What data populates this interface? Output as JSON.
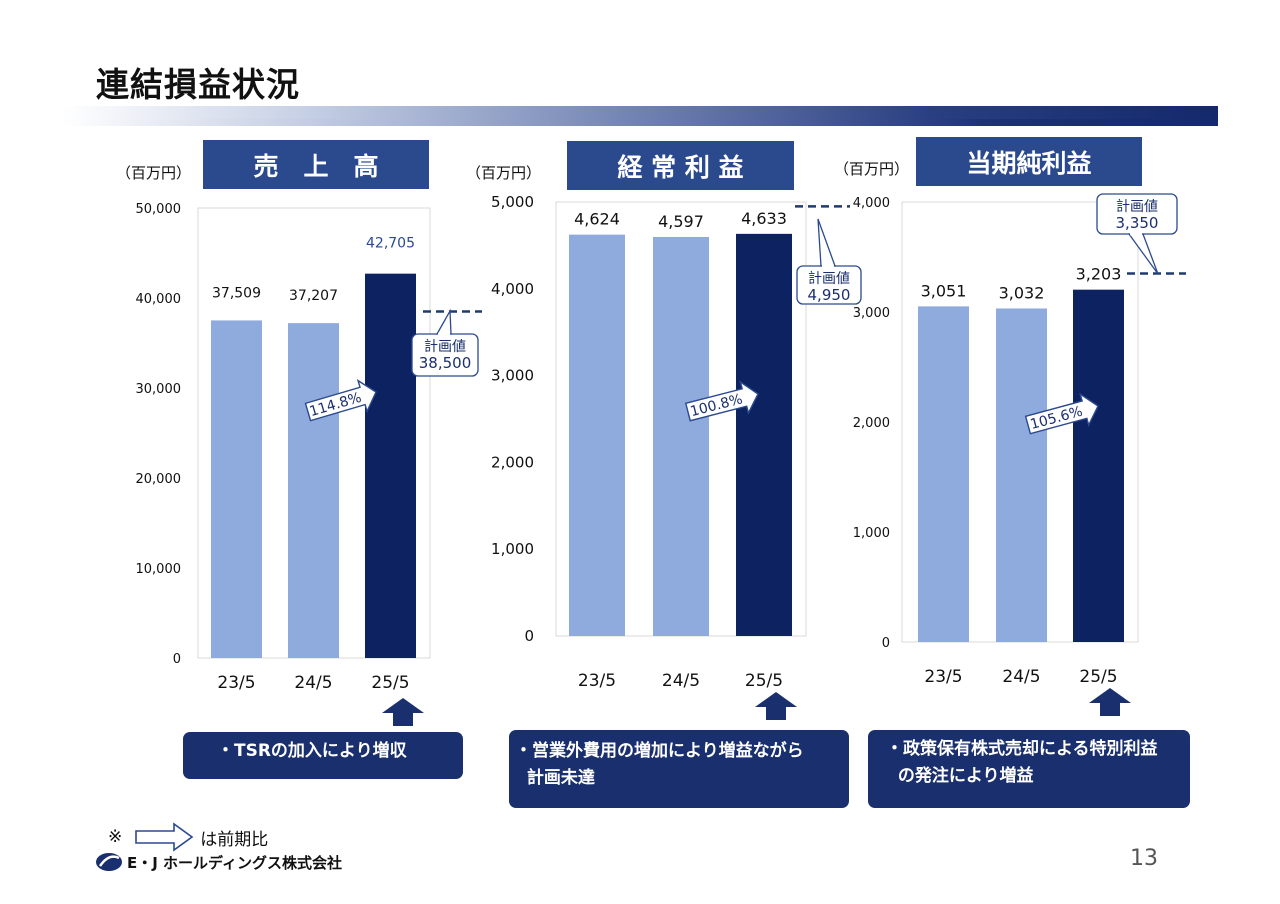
{
  "page_title": "連結損益状況",
  "page_number": "13",
  "company": "E・J ホールディングス株式会社",
  "footnote": {
    "prefix": "※",
    "suffix": "は前期比"
  },
  "colors": {
    "prior": "#8faadc",
    "current": "#0d2260",
    "label_current": "#2b4a8e",
    "note_bg": "#1a2f6e"
  },
  "chart_data": [
    {
      "type": "bar",
      "title": "売　上　高",
      "unit": "（百万円）",
      "categories": [
        "23/5",
        "24/5",
        "25/5"
      ],
      "values": [
        37509,
        37207,
        42705
      ],
      "value_labels": [
        "37,509",
        "37,207",
        "42,705"
      ],
      "ylim": [
        0,
        50000
      ],
      "yticks": [
        "0",
        "10,000",
        "20,000",
        "30,000",
        "40,000",
        "50,000"
      ],
      "plan_label": "計画値",
      "plan_value": 38500,
      "plan_value_label": "38,500",
      "growth": "114.8%",
      "note": [
        "・TSRの加入により増収"
      ]
    },
    {
      "type": "bar",
      "title": "経 常 利 益",
      "unit": "（百万円）",
      "categories": [
        "23/5",
        "24/5",
        "25/5"
      ],
      "values": [
        4624,
        4597,
        4633
      ],
      "value_labels": [
        "4,624",
        "4,597",
        "4,633"
      ],
      "ylim": [
        0,
        5000
      ],
      "yticks": [
        "0",
        "1,000",
        "2,000",
        "3,000",
        "4,000",
        "5,000"
      ],
      "plan_label": "計画値",
      "plan_value": 4950,
      "plan_value_label": "4,950",
      "growth": "100.8%",
      "note": [
        "・営業外費用の増加により増益ながら",
        "  計画未達"
      ]
    },
    {
      "type": "bar",
      "title": "当期純利益",
      "unit": "（百万円）",
      "categories": [
        "23/5",
        "24/5",
        "25/5"
      ],
      "values": [
        3051,
        3032,
        3203
      ],
      "value_labels": [
        "3,051",
        "3,032",
        "3,203"
      ],
      "ylim": [
        0,
        4000
      ],
      "yticks": [
        "0",
        "1,000",
        "2,000",
        "3,000",
        "4,000"
      ],
      "plan_label": "計画値",
      "plan_value": 3350,
      "plan_value_label": "3,350",
      "growth": "105.6%",
      "note": [
        "・政策保有株式売却による特別利益",
        "  の発注により増益"
      ]
    }
  ]
}
